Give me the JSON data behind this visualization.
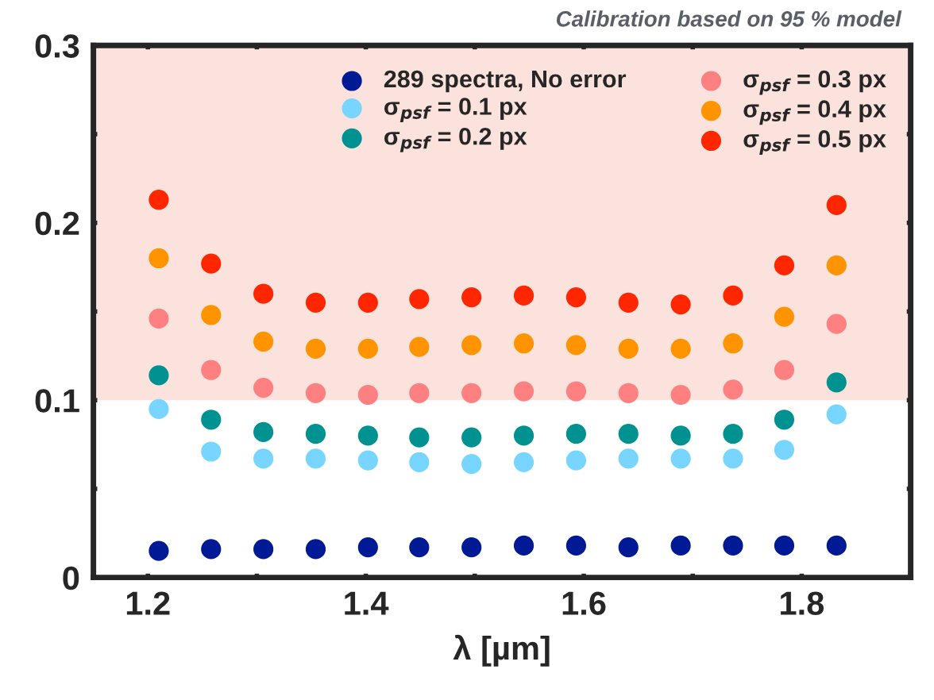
{
  "chart_data": {
    "type": "scatter",
    "xlabel": "λ [µm]",
    "annotations": [
      "Calibration based on 95 % model"
    ],
    "x": [
      1.21,
      1.258,
      1.306,
      1.354,
      1.402,
      1.449,
      1.497,
      1.545,
      1.593,
      1.641,
      1.689,
      1.737,
      1.784,
      1.832
    ],
    "series": [
      {
        "name": "289 spectra, No error",
        "color": "#001a96",
        "values": [
          0.015,
          0.016,
          0.016,
          0.016,
          0.017,
          0.017,
          0.017,
          0.018,
          0.018,
          0.017,
          0.018,
          0.018,
          0.018,
          0.018
        ]
      },
      {
        "name": "σ$_{psf}$ = 0.1 px",
        "color": "#78d5ff",
        "values": [
          0.095,
          0.071,
          0.067,
          0.067,
          0.066,
          0.065,
          0.064,
          0.065,
          0.066,
          0.067,
          0.067,
          0.067,
          0.072,
          0.092
        ]
      },
      {
        "name": "σ$_{psf}$ = 0.2 px",
        "color": "#009191",
        "values": [
          0.114,
          0.089,
          0.082,
          0.081,
          0.08,
          0.079,
          0.079,
          0.08,
          0.081,
          0.081,
          0.08,
          0.081,
          0.089,
          0.11
        ]
      },
      {
        "name": "σ$_{psf}$ = 0.3 px",
        "color": "#ff8080",
        "values": [
          0.146,
          0.117,
          0.107,
          0.104,
          0.103,
          0.104,
          0.104,
          0.105,
          0.105,
          0.104,
          0.103,
          0.106,
          0.117,
          0.143
        ]
      },
      {
        "name": "σ$_{psf}$ = 0.4 px",
        "color": "#ff9400",
        "values": [
          0.18,
          0.148,
          0.133,
          0.129,
          0.129,
          0.13,
          0.131,
          0.132,
          0.131,
          0.129,
          0.129,
          0.132,
          0.147,
          0.176
        ]
      },
      {
        "name": "σ$_{psf}$ = 0.5 px",
        "color": "#ff2600",
        "values": [
          0.213,
          0.177,
          0.16,
          0.155,
          0.155,
          0.157,
          0.158,
          0.159,
          0.158,
          0.155,
          0.154,
          0.159,
          0.176,
          0.21
        ]
      }
    ],
    "bands": [
      {
        "axis": "y",
        "from": 0.1,
        "to": 0.3,
        "color": "#fbe2dc"
      }
    ],
    "xlim": [
      1.15,
      1.9
    ],
    "ylim": [
      0,
      0.3
    ],
    "xticks": [
      1.2,
      {
        "value": 1.3,
        "label": null
      },
      1.4,
      {
        "value": 1.5,
        "label": null
      },
      1.6,
      {
        "value": 1.7,
        "label": null
      },
      1.8
    ],
    "yticks": [
      0,
      {
        "value": 0.05,
        "label": null
      },
      0.1,
      {
        "value": 0.15,
        "label": null
      },
      0.2,
      {
        "value": 0.25,
        "label": null
      },
      0.3
    ],
    "marker": "circle",
    "legend": "top right",
    "grid": false
  }
}
